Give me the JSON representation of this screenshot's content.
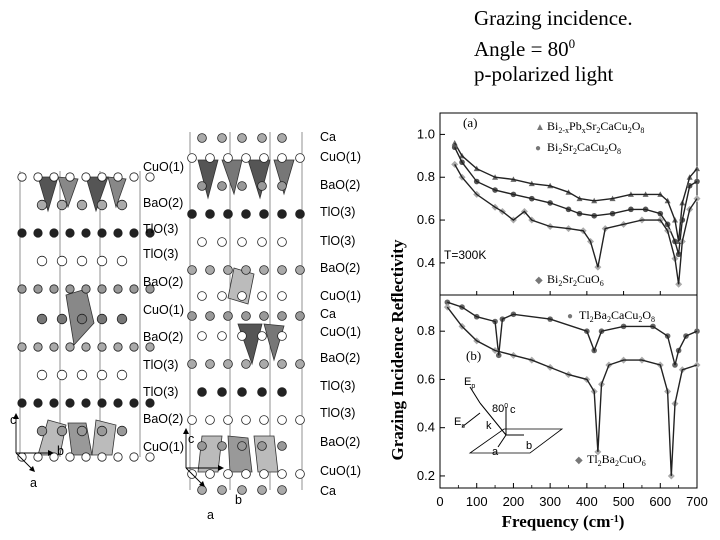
{
  "header": {
    "line1": "Grazing incidence.",
    "line2_prefix": "Angle = 80",
    "line2_sup": "0",
    "line3": "p-polarized light"
  },
  "structure_left": {
    "layers": [
      "CuO(1)",
      "BaO(2)",
      "TlO(3)",
      "TlO(3)",
      "BaO(2)",
      "CuO(1)",
      "BaO(2)",
      "TlO(3)",
      "TlO(3)",
      "BaO(2)",
      "CuO(1)"
    ],
    "axes": {
      "a": "a",
      "b": "b",
      "c": "c"
    }
  },
  "structure_right": {
    "layers": [
      "Ca",
      "CuO(1)",
      "BaO(2)",
      "TlO(3)",
      "TlO(3)",
      "BaO(2)",
      "CuO(1)",
      "Ca",
      "CuO(1)",
      "BaO(2)",
      "TlO(3)",
      "TlO(3)",
      "BaO(2)",
      "CuO(1)",
      "Ca"
    ],
    "axes": {
      "a": "a",
      "b": "b",
      "c": "c"
    }
  },
  "chart": {
    "ylabel": "Grazing Incidence Reflectivity",
    "xlabel_main": "Frequency",
    "xlabel_unit": "(cm",
    "xlabel_exp": "-1",
    "xlabel_close": ")",
    "x_ticks": [
      "0",
      "100",
      "200",
      "300",
      "400",
      "500",
      "600",
      "700"
    ],
    "panel_a": {
      "label": "(a)",
      "y_ticks": [
        "1.0",
        "0.8",
        "0.6",
        "0.4"
      ],
      "temperature": "T=300K",
      "legend": [
        {
          "marker": "▲",
          "text_parts": [
            "Bi",
            "2-x",
            "Pb",
            "x",
            "Sr",
            "2",
            "CaCu",
            "2",
            "O",
            "8"
          ]
        },
        {
          "marker": "●",
          "text_parts": [
            "Bi",
            "2",
            "Sr",
            "2",
            "CaCu",
            "2",
            "O",
            "8"
          ]
        },
        {
          "marker": "◆",
          "text_parts": [
            "Bi",
            "2",
            "Sr",
            "2",
            "CuO",
            "6"
          ]
        }
      ]
    },
    "panel_b": {
      "label": "(b)",
      "y_ticks": [
        "0.8",
        "0.6",
        "0.4",
        "0.2"
      ],
      "legend": [
        {
          "marker": "●",
          "text_parts": [
            "Tl",
            "2",
            "Ba",
            "2",
            "CaCu",
            "2",
            "O",
            "8"
          ]
        },
        {
          "marker": "◆",
          "text_parts": [
            "Tl",
            "2",
            "Ba",
            "2",
            "CuO",
            "6"
          ]
        }
      ],
      "inset": {
        "ep": "E",
        "ep_sub": "p",
        "es": "E",
        "es_sub": "s",
        "k": "k",
        "angle": "80",
        "angle_sup": "0",
        "c": "c",
        "a": "a",
        "b": "b"
      }
    }
  },
  "chart_data": [
    {
      "type": "line",
      "panel": "(a)",
      "xlabel": "Frequency (cm-1)",
      "ylabel": "Grazing Incidence Reflectivity",
      "xlim": [
        0,
        700
      ],
      "ylim": [
        0.25,
        1.1
      ],
      "series": [
        {
          "name": "Bi2-xPbxSr2CaCu2O8",
          "x": [
            40,
            60,
            100,
            150,
            200,
            250,
            300,
            350,
            380,
            420,
            470,
            520,
            560,
            600,
            620,
            640,
            650,
            660,
            680,
            700
          ],
          "y": [
            0.96,
            0.9,
            0.84,
            0.8,
            0.79,
            0.77,
            0.76,
            0.73,
            0.7,
            0.69,
            0.7,
            0.72,
            0.72,
            0.72,
            0.69,
            0.6,
            0.5,
            0.68,
            0.8,
            0.84
          ]
        },
        {
          "name": "Bi2Sr2CaCu2O8",
          "x": [
            40,
            60,
            100,
            150,
            200,
            250,
            300,
            350,
            380,
            420,
            470,
            520,
            560,
            600,
            620,
            640,
            650,
            660,
            680,
            700
          ],
          "y": [
            0.94,
            0.87,
            0.78,
            0.74,
            0.72,
            0.7,
            0.68,
            0.65,
            0.63,
            0.62,
            0.63,
            0.65,
            0.65,
            0.63,
            0.58,
            0.5,
            0.44,
            0.6,
            0.76,
            0.78
          ]
        },
        {
          "name": "Bi2Sr2CuO6",
          "x": [
            40,
            60,
            100,
            150,
            170,
            200,
            230,
            250,
            300,
            350,
            390,
            410,
            430,
            450,
            500,
            550,
            600,
            620,
            640,
            650,
            660,
            680,
            700
          ],
          "y": [
            0.86,
            0.8,
            0.72,
            0.66,
            0.64,
            0.6,
            0.64,
            0.6,
            0.57,
            0.56,
            0.55,
            0.5,
            0.38,
            0.56,
            0.58,
            0.6,
            0.6,
            0.55,
            0.42,
            0.3,
            0.5,
            0.65,
            0.7
          ]
        }
      ]
    },
    {
      "type": "line",
      "panel": "(b)",
      "xlabel": "Frequency (cm-1)",
      "ylabel": "Grazing Incidence Reflectivity",
      "xlim": [
        0,
        700
      ],
      "ylim": [
        0.15,
        0.95
      ],
      "series": [
        {
          "name": "Tl2Ba2CaCu2O8",
          "x": [
            20,
            60,
            100,
            150,
            160,
            170,
            200,
            300,
            400,
            420,
            440,
            500,
            580,
            620,
            640,
            650,
            670,
            700
          ],
          "y": [
            0.92,
            0.9,
            0.86,
            0.84,
            0.7,
            0.85,
            0.87,
            0.85,
            0.8,
            0.72,
            0.8,
            0.82,
            0.82,
            0.78,
            0.66,
            0.72,
            0.78,
            0.8
          ]
        },
        {
          "name": "Tl2Ba2CuO6",
          "x": [
            20,
            60,
            100,
            150,
            200,
            250,
            300,
            350,
            400,
            420,
            430,
            440,
            460,
            500,
            550,
            600,
            620,
            630,
            640,
            660,
            700
          ],
          "y": [
            0.9,
            0.82,
            0.76,
            0.72,
            0.7,
            0.68,
            0.65,
            0.62,
            0.6,
            0.55,
            0.3,
            0.58,
            0.66,
            0.68,
            0.68,
            0.66,
            0.55,
            0.2,
            0.5,
            0.64,
            0.66
          ]
        }
      ]
    }
  ]
}
